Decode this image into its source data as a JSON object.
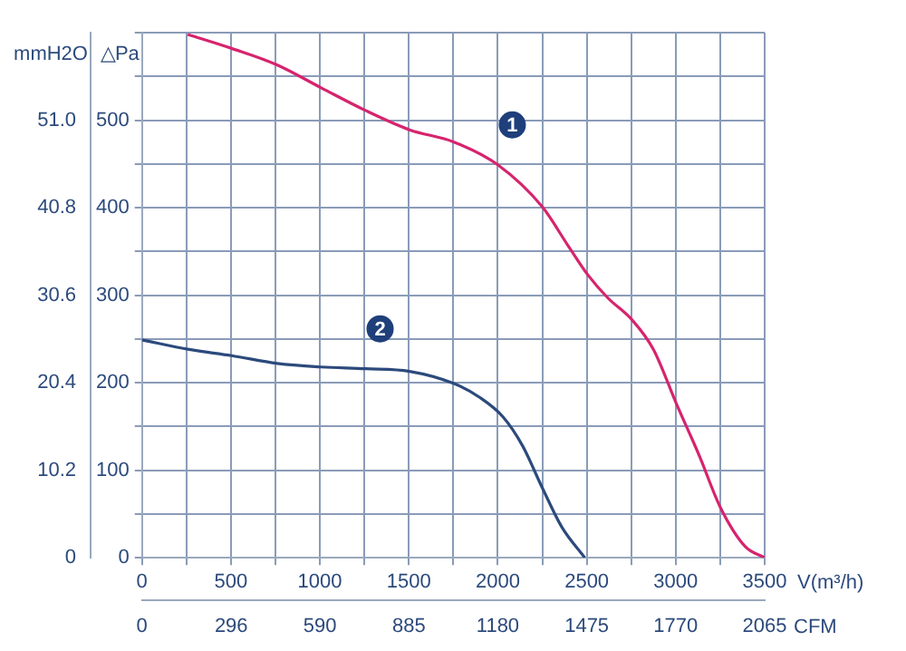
{
  "chart_data": {
    "type": "line",
    "xlabel": "V(m³/h)",
    "x2label": "CFM",
    "ylabel": "△Pa",
    "y2label": "mmH2O",
    "xlim": [
      0,
      3500
    ],
    "xticks": [
      0,
      500,
      1000,
      1500,
      2000,
      2500,
      3000,
      3500
    ],
    "x2lim": [
      0,
      2065
    ],
    "x2ticks": [
      0,
      296,
      590,
      885,
      1180,
      1475,
      1770,
      2065
    ],
    "ylim": [
      0,
      600
    ],
    "yticks": [
      0,
      100,
      200,
      300,
      400,
      500
    ],
    "y2lim": [
      0,
      61.2
    ],
    "y2ticks": [
      0,
      10.2,
      20.4,
      30.6,
      40.8,
      {
        "value": 51,
        "label": "51.0"
      }
    ],
    "grid": true,
    "legend": false,
    "marker": "none",
    "line_style": "solid",
    "series": [
      {
        "name": "1",
        "color": "#d6246e",
        "x": [
          257,
          504,
          761,
          1007,
          1257,
          1504,
          1754,
          2000,
          2250,
          2397,
          2507,
          2618,
          2754,
          2875,
          3004,
          3132,
          3250,
          3390,
          3500
        ],
        "values": [
          598,
          582,
          563,
          537,
          511,
          489,
          475,
          449,
          401,
          356,
          323,
          297,
          272,
          238,
          176,
          117,
          58,
          13,
          0
        ]
      },
      {
        "name": "2",
        "color": "#2c4a7c",
        "x": [
          0,
          265,
          504,
          761,
          1007,
          1257,
          1504,
          1754,
          1900,
          2029,
          2139,
          2250,
          2360,
          2489
        ],
        "values": [
          249,
          238,
          231,
          222,
          218,
          216,
          213,
          199,
          183,
          161,
          128,
          80,
          35,
          0
        ]
      }
    ]
  }
}
